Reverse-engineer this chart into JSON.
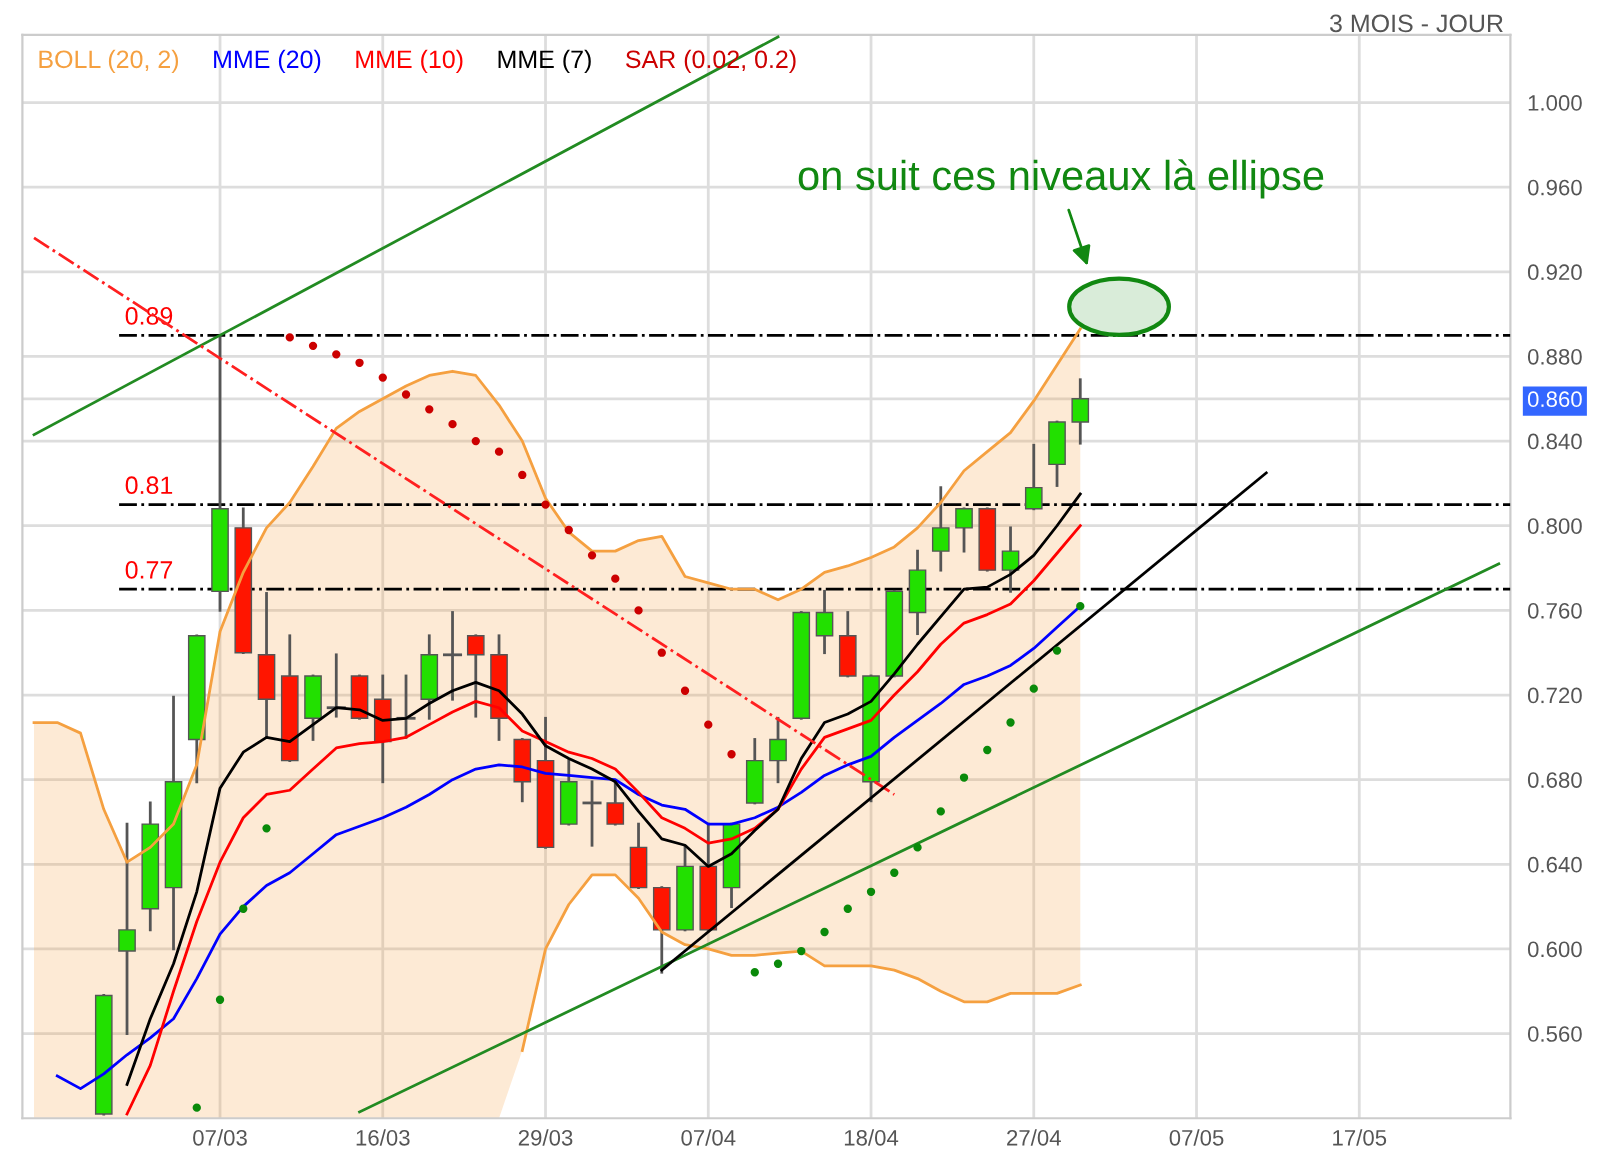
{
  "chart_data": {
    "type": "candlestick",
    "subtitle": "3 MOIS - JOUR",
    "categories": [
      null,
      null,
      null,
      null,
      null,
      null,
      null,
      null,
      "07/03",
      null,
      null,
      null,
      null,
      null,
      null,
      "16/03",
      null,
      null,
      null,
      null,
      null,
      null,
      "29/03",
      null,
      null,
      null,
      null,
      null,
      null,
      "07/04",
      null,
      null,
      null,
      null,
      null,
      null,
      "18/04",
      null,
      null,
      null,
      null,
      null,
      null,
      "27/04",
      null,
      null,
      null,
      null,
      null,
      null,
      "07/05",
      null,
      null,
      null,
      null,
      null,
      null,
      "17/05",
      null,
      null,
      null,
      null,
      null,
      null
    ],
    "ylim": [
      0.52,
      1.032
    ],
    "yticks": [
      {
        "value": 0.56,
        "label": "0.560"
      },
      {
        "value": 0.6,
        "label": "0.600"
      },
      {
        "value": 0.64,
        "label": "0.640"
      },
      {
        "value": 0.68,
        "label": "0.680"
      },
      {
        "value": 0.72,
        "label": "0.720"
      },
      {
        "value": 0.76,
        "label": "0.760"
      },
      {
        "value": 0.8,
        "label": "0.800"
      },
      {
        "value": 0.84,
        "label": "0.840"
      },
      {
        "value": 0.86,
        "label": "0.860"
      },
      {
        "value": 0.88,
        "label": "0.880"
      },
      {
        "value": 0.92,
        "label": "0.920"
      },
      {
        "value": 0.96,
        "label": "0.960"
      },
      {
        "value": 1.0,
        "label": "1.000"
      }
    ],
    "grid": true,
    "legend": "top left",
    "series": [
      {
        "name": "BOLL (20, 2)",
        "type": "line",
        "color": "#f5a040",
        "values": [
          0.707,
          0.707,
          0.702,
          0.666,
          0.641,
          0.648,
          0.659,
          0.687,
          0.75,
          0.778,
          0.799,
          0.811,
          0.828,
          0.846,
          0.854,
          0.86,
          0.866,
          0.871,
          0.873,
          0.871,
          0.857,
          0.84,
          0.813,
          0.797,
          0.788,
          0.788,
          0.793,
          0.795,
          0.776,
          0.773,
          0.77,
          0.77,
          0.765,
          0.77,
          0.778,
          0.781,
          0.785,
          0.79,
          0.799,
          0.811,
          0.826,
          0.835,
          0.844,
          0.859,
          0.876,
          0.893,
          null,
          null,
          null,
          null,
          null,
          null,
          null,
          null,
          null,
          null,
          null,
          null,
          null,
          null,
          null,
          null,
          null,
          null
        ]
      },
      {
        "type": "line",
        "color": "#f5a040",
        "values": [
          null,
          null,
          null,
          null,
          null,
          null,
          null,
          null,
          null,
          null,
          null,
          null,
          null,
          null,
          null,
          null,
          null,
          null,
          null,
          null,
          null,
          0.552,
          0.6,
          0.621,
          0.635,
          0.635,
          0.624,
          0.608,
          0.602,
          0.6,
          0.597,
          0.597,
          0.598,
          0.599,
          0.592,
          0.592,
          0.592,
          0.59,
          0.586,
          0.58,
          0.575,
          0.575,
          0.579,
          0.579,
          0.579,
          0.583,
          null,
          null,
          null,
          null,
          null,
          null,
          null,
          null,
          null,
          null,
          null,
          null,
          null,
          null,
          null,
          null,
          null,
          null
        ]
      },
      {
        "name": "MME (20)",
        "type": "line",
        "color": "#0000ff",
        "values": [
          null,
          0.54,
          0.534,
          0.541,
          0.55,
          0.558,
          0.567,
          0.586,
          0.607,
          0.62,
          0.63,
          0.636,
          0.645,
          0.654,
          0.658,
          0.662,
          0.667,
          0.673,
          0.68,
          0.685,
          0.687,
          0.686,
          0.683,
          0.682,
          0.681,
          0.68,
          0.673,
          0.668,
          0.666,
          0.659,
          0.659,
          0.662,
          0.667,
          0.674,
          0.682,
          0.687,
          0.691,
          0.7,
          0.708,
          0.716,
          0.725,
          0.729,
          0.734,
          0.742,
          0.752,
          0.762,
          null,
          null,
          null,
          null,
          null,
          null,
          null,
          null,
          null,
          null,
          null,
          null,
          null,
          null,
          null,
          null,
          null,
          null
        ]
      },
      {
        "name": "MME (10)",
        "type": "line",
        "color": "#ff0000",
        "values": [
          null,
          null,
          null,
          null,
          0.522,
          0.545,
          0.58,
          0.613,
          0.641,
          0.662,
          0.673,
          0.675,
          0.685,
          0.695,
          0.697,
          0.698,
          0.7,
          0.706,
          0.712,
          0.717,
          0.714,
          0.703,
          0.698,
          0.693,
          0.69,
          0.685,
          0.674,
          0.662,
          0.657,
          0.65,
          0.652,
          0.657,
          0.666,
          0.685,
          0.7,
          0.704,
          0.708,
          0.72,
          0.731,
          0.744,
          0.754,
          0.758,
          0.763,
          0.774,
          0.787,
          0.8,
          null,
          null,
          null,
          null,
          null,
          null,
          null,
          null,
          null,
          null,
          null,
          null,
          null,
          null,
          null,
          null,
          null,
          null
        ]
      },
      {
        "name": "MME (7)",
        "type": "line",
        "color": "#000000",
        "values": [
          null,
          null,
          null,
          null,
          0.536,
          0.567,
          0.593,
          0.627,
          0.676,
          0.693,
          0.7,
          0.698,
          0.706,
          0.714,
          0.713,
          0.708,
          0.709,
          0.716,
          0.722,
          0.726,
          0.722,
          0.711,
          0.696,
          0.69,
          0.685,
          0.679,
          0.665,
          0.652,
          0.649,
          0.639,
          0.645,
          0.656,
          0.666,
          0.69,
          0.707,
          0.711,
          0.717,
          0.73,
          0.744,
          0.757,
          0.77,
          0.771,
          0.777,
          0.786,
          0.8,
          0.815,
          null,
          null,
          null,
          null,
          null,
          null,
          null,
          null,
          null,
          null,
          null,
          null,
          null,
          null,
          null,
          null,
          null,
          null
        ]
      },
      {
        "name": "SAR (0.02, 0.2)",
        "type": "scatter",
        "color": "#cc0000",
        "values": [
          null,
          null,
          null,
          null,
          null,
          null,
          null,
          0.525,
          0.576,
          0.619,
          0.657,
          0.889,
          0.885,
          0.881,
          0.877,
          0.87,
          0.862,
          0.855,
          0.848,
          0.84,
          0.835,
          0.824,
          0.81,
          0.798,
          0.786,
          0.775,
          0.76,
          0.74,
          0.722,
          0.706,
          0.692,
          0.589,
          0.593,
          0.599,
          0.608,
          0.619,
          0.627,
          0.636,
          0.648,
          0.665,
          0.681,
          0.694,
          0.707,
          0.723,
          0.741,
          0.762,
          null,
          null,
          null,
          null,
          null,
          null,
          null,
          null,
          null,
          null,
          null,
          null,
          null,
          null,
          null,
          null,
          null,
          null
        ],
        "colors": [
          null,
          null,
          null,
          null,
          null,
          null,
          null,
          "#0a8a0a",
          "#0a8a0a",
          "#0a8a0a",
          "#0a8a0a",
          "#cc0000",
          "#cc0000",
          "#cc0000",
          "#cc0000",
          "#cc0000",
          "#cc0000",
          "#cc0000",
          "#cc0000",
          "#cc0000",
          "#cc0000",
          "#cc0000",
          "#cc0000",
          "#cc0000",
          "#cc0000",
          "#cc0000",
          "#cc0000",
          "#cc0000",
          "#cc0000",
          "#cc0000",
          "#cc0000",
          "#0a8a0a",
          "#0a8a0a",
          "#0a8a0a",
          "#0a8a0a",
          "#0a8a0a",
          "#0a8a0a",
          "#0a8a0a",
          "#0a8a0a",
          "#0a8a0a",
          "#0a8a0a",
          "#0a8a0a",
          "#0a8a0a",
          "#0a8a0a",
          "#0a8a0a",
          "#0a8a0a",
          null,
          null,
          null,
          null,
          null,
          null,
          null,
          null,
          null,
          null,
          null,
          null,
          null,
          null,
          null,
          null,
          null,
          null
        ]
      },
      {
        "type": "line",
        "color": "#228b22",
        "values": [
          0.843,
          null,
          null,
          null,
          null,
          null,
          null,
          null,
          null,
          null,
          null,
          null,
          null,
          null,
          null,
          null,
          null,
          null,
          null,
          null,
          null,
          null,
          null,
          null,
          null,
          null,
          null,
          null,
          null,
          null,
          null,
          null,
          1.031,
          null,
          null,
          null,
          null,
          null,
          null,
          null,
          null,
          null,
          null,
          null,
          null,
          null,
          null,
          null,
          null,
          null,
          null,
          null,
          null,
          null,
          null,
          null,
          null,
          null,
          null,
          null,
          null,
          null,
          null,
          null
        ]
      },
      {
        "type": "line",
        "color": "#228b22",
        "values": [
          null,
          null,
          null,
          null,
          null,
          null,
          null,
          null,
          null,
          null,
          null,
          null,
          null,
          null,
          0.523,
          null,
          null,
          null,
          null,
          null,
          null,
          null,
          null,
          null,
          null,
          null,
          null,
          null,
          null,
          null,
          null,
          null,
          null,
          null,
          null,
          null,
          null,
          null,
          null,
          null,
          null,
          null,
          null,
          null,
          null,
          null,
          null,
          null,
          null,
          null,
          null,
          null,
          null,
          null,
          null,
          null,
          null,
          null,
          null,
          null,
          null,
          null,
          null,
          0.782
        ]
      },
      {
        "type": "line",
        "color": "#ff2020",
        "line_style": "dashdot",
        "values": [
          0.936,
          null,
          null,
          null,
          null,
          null,
          null,
          null,
          null,
          null,
          null,
          null,
          null,
          null,
          null,
          null,
          null,
          null,
          null,
          null,
          null,
          null,
          null,
          null,
          null,
          null,
          null,
          null,
          null,
          null,
          null,
          null,
          null,
          null,
          null,
          null,
          null,
          0.673,
          null,
          null,
          null,
          null,
          null,
          null,
          null,
          null,
          null,
          null,
          null,
          null,
          null,
          null,
          null,
          null,
          null,
          null,
          null,
          null,
          null,
          null,
          null,
          null,
          null,
          null
        ]
      },
      {
        "type": "line",
        "color": "#000000",
        "values": [
          null,
          null,
          null,
          null,
          null,
          null,
          null,
          null,
          null,
          null,
          null,
          null,
          null,
          null,
          null,
          null,
          null,
          null,
          null,
          null,
          null,
          null,
          null,
          null,
          null,
          null,
          null,
          0.59,
          null,
          null,
          null,
          null,
          null,
          null,
          null,
          null,
          null,
          null,
          null,
          null,
          null,
          null,
          null,
          null,
          null,
          null,
          null,
          null,
          null,
          null,
          null,
          null,
          null,
          0.825,
          null,
          null,
          null,
          null,
          null,
          null,
          null,
          null,
          null,
          null
        ]
      },
      {
        "color": "#555555",
        "ohlc": [
          null,
          null,
          null,
          [
            0.522,
            0.578,
            0.522,
            0.578
          ],
          [
            0.599,
            0.659,
            0.56,
            0.609
          ],
          [
            0.619,
            0.669,
            0.609,
            0.659
          ],
          [
            0.629,
            0.719,
            0.6,
            0.679
          ],
          [
            0.699,
            0.748,
            0.679,
            0.748
          ],
          [
            0.769,
            0.889,
            0.76,
            0.808
          ],
          [
            0.799,
            0.808,
            0.74,
            0.74
          ],
          [
            0.739,
            0.768,
            0.7,
            0.718
          ],
          [
            0.729,
            0.748,
            0.689,
            0.689
          ],
          [
            0.709,
            0.729,
            0.699,
            0.729
          ],
          [
            0.714,
            0.739,
            0.71,
            0.714
          ],
          [
            0.729,
            0.729,
            0.709,
            0.709
          ],
          [
            0.718,
            0.729,
            0.679,
            0.698
          ],
          [
            0.709,
            0.729,
            0.7,
            0.709
          ],
          [
            0.718,
            0.748,
            0.709,
            0.739
          ],
          [
            0.739,
            0.759,
            0.718,
            0.739
          ],
          [
            0.748,
            0.748,
            0.71,
            0.739
          ],
          [
            0.739,
            0.748,
            0.699,
            0.709
          ],
          [
            0.699,
            0.699,
            0.67,
            0.679
          ],
          [
            0.689,
            0.709,
            0.648,
            0.648
          ],
          [
            0.659,
            0.689,
            0.659,
            0.679
          ],
          [
            0.669,
            0.679,
            0.649,
            0.669
          ],
          [
            0.669,
            0.679,
            0.659,
            0.659
          ],
          [
            0.648,
            0.659,
            0.629,
            0.629
          ],
          [
            0.629,
            0.629,
            0.589,
            0.609
          ],
          [
            0.609,
            0.648,
            0.609,
            0.639
          ],
          [
            0.639,
            0.659,
            0.609,
            0.609
          ],
          [
            0.629,
            0.659,
            0.62,
            0.659
          ],
          [
            0.669,
            0.699,
            0.669,
            0.689
          ],
          [
            0.689,
            0.709,
            0.679,
            0.699
          ],
          [
            0.709,
            0.759,
            0.709,
            0.759
          ],
          [
            0.748,
            0.769,
            0.74,
            0.759
          ],
          [
            0.748,
            0.759,
            0.729,
            0.729
          ],
          [
            0.679,
            0.729,
            0.67,
            0.729
          ],
          [
            0.729,
            0.769,
            0.729,
            0.769
          ],
          [
            0.759,
            0.788,
            0.749,
            0.779
          ],
          [
            0.788,
            0.818,
            0.779,
            0.799
          ],
          [
            0.799,
            0.808,
            0.788,
            0.808
          ],
          [
            0.808,
            0.808,
            0.779,
            0.779
          ],
          [
            0.779,
            0.799,
            0.769,
            0.788
          ],
          [
            0.808,
            0.838,
            0.808,
            0.818
          ],
          [
            0.829,
            0.849,
            0.819,
            0.849
          ],
          [
            0.849,
            0.869,
            0.839,
            0.86
          ],
          null,
          null,
          null,
          null,
          null,
          null,
          null,
          null,
          null,
          null,
          null,
          null,
          null,
          null,
          null,
          null,
          null,
          null
        ],
        "colors": [
          null,
          null,
          null,
          "#22e000",
          "#22e000",
          "#22e000",
          "#22e000",
          "#22e000",
          "#22e000",
          "#ff1500",
          "#ff1500",
          "#ff1500",
          "#22e000",
          "#555555",
          "#ff1500",
          "#ff1500",
          "#555555",
          "#22e000",
          "#555555",
          "#ff1500",
          "#ff1500",
          "#ff1500",
          "#ff1500",
          "#22e000",
          "#555555",
          "#ff1500",
          "#ff1500",
          "#ff1500",
          "#22e000",
          "#ff1500",
          "#22e000",
          "#22e000",
          "#22e000",
          "#22e000",
          "#22e000",
          "#ff1500",
          "#22e000",
          "#22e000",
          "#22e000",
          "#22e000",
          "#22e000",
          "#ff1500",
          "#22e000",
          "#22e000",
          "#22e000",
          "#22e000",
          null,
          null,
          null,
          null,
          null,
          null,
          null,
          null,
          null,
          null,
          null,
          null,
          null,
          null,
          null,
          null,
          null,
          null
        ]
      }
    ],
    "ref_lines": [
      {
        "axis": "y",
        "value": 0.89,
        "label": "0.89",
        "color": "#000000",
        "line_style": "dashdot"
      },
      {
        "axis": "y",
        "value": 0.81,
        "label": "0.81",
        "color": "#000000",
        "line_style": "dashdot"
      },
      {
        "axis": "y",
        "value": 0.77,
        "label": "0.77",
        "color": "#000000",
        "line_style": "dashdot"
      }
    ],
    "annotations": [
      "on suit ces niveaux là ellipse"
    ]
  }
}
